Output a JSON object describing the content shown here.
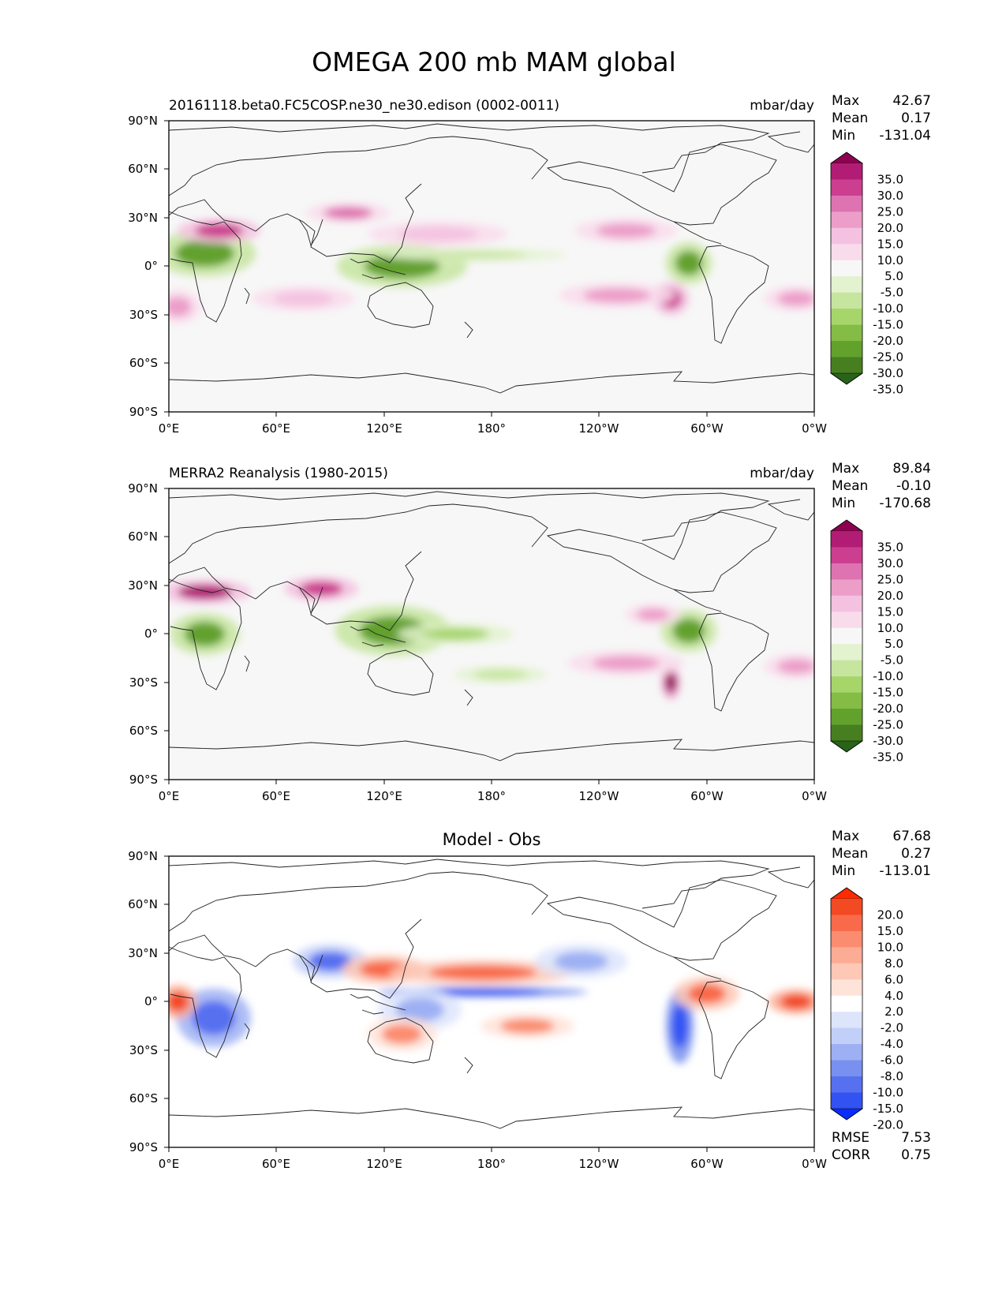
{
  "figure": {
    "title": "OMEGA 200 mb MAM global"
  },
  "panels": [
    {
      "id": "model",
      "left_title": "20161118.beta0.FC5COSP.ne30_ne30.edison (0002-0011)",
      "center_title": "",
      "units": "mbar/day",
      "stats": [
        {
          "label": "Max",
          "value": "42.67"
        },
        {
          "label": "Mean",
          "value": "0.17"
        },
        {
          "label": "Min",
          "value": "-131.04"
        }
      ],
      "footer_stats": [],
      "colorbar": {
        "labels": [
          "35.0",
          "30.0",
          "25.0",
          "20.0",
          "15.0",
          "10.0",
          "5.0",
          "-5.0",
          "-10.0",
          "-15.0",
          "-20.0",
          "-25.0",
          "-30.0",
          "-35.0"
        ],
        "top_color": "#8e0152",
        "bottom_color": "#276419",
        "colors": [
          "#8e0152",
          "#b11d74",
          "#cc3e8f",
          "#de73b1",
          "#ec9ec9",
          "#f4c2e0",
          "#f9dcec",
          "#f7f7f7",
          "#e3f2cf",
          "#c6e59f",
          "#a6d56a",
          "#84bc46",
          "#63a12d",
          "#477f20",
          "#276419"
        ]
      }
    },
    {
      "id": "obs",
      "left_title": "MERRA2 Reanalysis (1980-2015)",
      "center_title": "",
      "units": "mbar/day",
      "stats": [
        {
          "label": "Max",
          "value": "89.84"
        },
        {
          "label": "Mean",
          "value": "-0.10"
        },
        {
          "label": "Min",
          "value": "-170.68"
        }
      ],
      "footer_stats": [],
      "colorbar": {
        "labels": [
          "35.0",
          "30.0",
          "25.0",
          "20.0",
          "15.0",
          "10.0",
          "5.0",
          "-5.0",
          "-10.0",
          "-15.0",
          "-20.0",
          "-25.0",
          "-30.0",
          "-35.0"
        ],
        "top_color": "#8e0152",
        "bottom_color": "#276419",
        "colors": [
          "#8e0152",
          "#b11d74",
          "#cc3e8f",
          "#de73b1",
          "#ec9ec9",
          "#f4c2e0",
          "#f9dcec",
          "#f7f7f7",
          "#e3f2cf",
          "#c6e59f",
          "#a6d56a",
          "#84bc46",
          "#63a12d",
          "#477f20",
          "#276419"
        ]
      }
    },
    {
      "id": "diff",
      "left_title": "",
      "center_title": "Model - Obs",
      "units": "",
      "stats": [
        {
          "label": "Max",
          "value": "67.68"
        },
        {
          "label": "Mean",
          "value": "0.27"
        },
        {
          "label": "Min",
          "value": "-113.01"
        }
      ],
      "footer_stats": [
        {
          "label": "RMSE",
          "value": "7.53"
        },
        {
          "label": "CORR",
          "value": "0.75"
        }
      ],
      "colorbar": {
        "labels": [
          "20.0",
          "15.0",
          "10.0",
          "8.0",
          "6.0",
          "4.0",
          "2.0",
          "-2.0",
          "-4.0",
          "-6.0",
          "-8.0",
          "-10.0",
          "-15.0",
          "-20.0"
        ],
        "top_color": "#ff2a00",
        "bottom_color": "#0a2cff",
        "colors": [
          "#ff2a00",
          "#f24a22",
          "#f86a4a",
          "#fb8c70",
          "#fcab94",
          "#fdc8b6",
          "#fee3d8",
          "#ffffff",
          "#dde5fb",
          "#c2cff8",
          "#9db0f3",
          "#7890ef",
          "#5670f0",
          "#3352f2",
          "#0a2cff"
        ]
      }
    }
  ],
  "axes": {
    "x_ticks": [
      "0°E",
      "60°E",
      "120°E",
      "180°",
      "120°W",
      "60°W",
      "0°W"
    ],
    "y_ticks": [
      "90°N",
      "60°N",
      "30°N",
      "0°",
      "30°S",
      "60°S",
      "90°S"
    ]
  },
  "chart_data": {
    "type": "heatmap",
    "title": "OMEGA 200 mb MAM global",
    "variable": "OMEGA",
    "level": "200 mb",
    "season": "MAM",
    "region": "global",
    "units": "mbar/day",
    "x_range": [
      0,
      360
    ],
    "y_range": [
      -90,
      90
    ],
    "x_tick_values": [
      0,
      60,
      120,
      180,
      240,
      300,
      360
    ],
    "y_tick_values": [
      90,
      60,
      30,
      0,
      -30,
      -60,
      -90
    ],
    "panels": [
      {
        "name": "20161118.beta0.FC5COSP.ne30_ne30.edison (0002-0011)",
        "max": 42.67,
        "mean": 0.17,
        "min": -131.04,
        "levels": [
          -35,
          -30,
          -25,
          -20,
          -15,
          -10,
          -5,
          5,
          10,
          15,
          20,
          25,
          30,
          35
        ],
        "features": [
          {
            "lon": 20,
            "lat": 8,
            "rx": 22,
            "ry": 11,
            "value": -30
          },
          {
            "lon": 28,
            "lat": 22,
            "rx": 18,
            "ry": 6,
            "value": 25
          },
          {
            "lon": 5,
            "lat": -25,
            "rx": 10,
            "ry": 8,
            "value": 18
          },
          {
            "lon": 130,
            "lat": 0,
            "rx": 28,
            "ry": 10,
            "value": -30
          },
          {
            "lon": 170,
            "lat": 7,
            "rx": 40,
            "ry": 3,
            "value": -15
          },
          {
            "lon": 75,
            "lat": -20,
            "rx": 22,
            "ry": 6,
            "value": 12
          },
          {
            "lon": 150,
            "lat": 20,
            "rx": 30,
            "ry": 6,
            "value": 12
          },
          {
            "lon": 290,
            "lat": 2,
            "rx": 10,
            "ry": 10,
            "value": -30
          },
          {
            "lon": 280,
            "lat": -20,
            "rx": 8,
            "ry": 8,
            "value": 25
          },
          {
            "lon": 250,
            "lat": -18,
            "rx": 25,
            "ry": 6,
            "value": 15
          },
          {
            "lon": 255,
            "lat": 22,
            "rx": 22,
            "ry": 6,
            "value": 15
          },
          {
            "lon": 350,
            "lat": -20,
            "rx": 14,
            "ry": 6,
            "value": 15
          },
          {
            "lon": 100,
            "lat": 33,
            "rx": 18,
            "ry": 5,
            "value": 20
          }
        ]
      },
      {
        "name": "MERRA2 Reanalysis (1980-2015)",
        "max": 89.84,
        "mean": -0.1,
        "min": -170.68,
        "levels": [
          -35,
          -30,
          -25,
          -20,
          -15,
          -10,
          -5,
          5,
          10,
          15,
          20,
          25,
          30,
          35
        ],
        "features": [
          {
            "lon": 20,
            "lat": 0,
            "rx": 15,
            "ry": 10,
            "value": -30
          },
          {
            "lon": 20,
            "lat": 26,
            "rx": 20,
            "ry": 6,
            "value": 30
          },
          {
            "lon": 85,
            "lat": 28,
            "rx": 16,
            "ry": 6,
            "value": 25
          },
          {
            "lon": 125,
            "lat": 2,
            "rx": 25,
            "ry": 12,
            "value": -30
          },
          {
            "lon": 160,
            "lat": 0,
            "rx": 25,
            "ry": 5,
            "value": -20
          },
          {
            "lon": 185,
            "lat": -25,
            "rx": 20,
            "ry": 4,
            "value": -15
          },
          {
            "lon": 290,
            "lat": 2,
            "rx": 12,
            "ry": 10,
            "value": -30
          },
          {
            "lon": 280,
            "lat": -30,
            "rx": 4,
            "ry": 8,
            "value": 35
          },
          {
            "lon": 255,
            "lat": -18,
            "rx": 25,
            "ry": 6,
            "value": 15
          },
          {
            "lon": 270,
            "lat": 12,
            "rx": 12,
            "ry": 5,
            "value": 15
          },
          {
            "lon": 350,
            "lat": -20,
            "rx": 14,
            "ry": 6,
            "value": 15
          }
        ]
      },
      {
        "name": "Model - Obs",
        "max": 67.68,
        "mean": 0.27,
        "min": -113.01,
        "rmse": 7.53,
        "corr": 0.75,
        "levels": [
          -20,
          -15,
          -10,
          -8,
          -6,
          -4,
          -2,
          2,
          4,
          6,
          8,
          10,
          15,
          20
        ],
        "features": [
          {
            "lon": 25,
            "lat": -10,
            "rx": 16,
            "ry": 14,
            "value": -15
          },
          {
            "lon": 5,
            "lat": 0,
            "rx": 8,
            "ry": 8,
            "value": 15
          },
          {
            "lon": 90,
            "lat": 25,
            "rx": 16,
            "ry": 8,
            "value": -12
          },
          {
            "lon": 120,
            "lat": 20,
            "rx": 18,
            "ry": 7,
            "value": 12
          },
          {
            "lon": 175,
            "lat": 6,
            "rx": 45,
            "ry": 2.5,
            "value": -20
          },
          {
            "lon": 175,
            "lat": 18,
            "rx": 40,
            "ry": 6,
            "value": 10
          },
          {
            "lon": 140,
            "lat": -5,
            "rx": 18,
            "ry": 10,
            "value": -8
          },
          {
            "lon": 130,
            "lat": -20,
            "rx": 15,
            "ry": 8,
            "value": 8
          },
          {
            "lon": 285,
            "lat": -15,
            "rx": 6,
            "ry": 18,
            "value": -20
          },
          {
            "lon": 300,
            "lat": 5,
            "rx": 14,
            "ry": 8,
            "value": 12
          },
          {
            "lon": 350,
            "lat": 0,
            "rx": 12,
            "ry": 6,
            "value": 15
          },
          {
            "lon": 230,
            "lat": 25,
            "rx": 20,
            "ry": 8,
            "value": -8
          },
          {
            "lon": 200,
            "lat": -15,
            "rx": 20,
            "ry": 6,
            "value": 8
          }
        ]
      }
    ]
  }
}
